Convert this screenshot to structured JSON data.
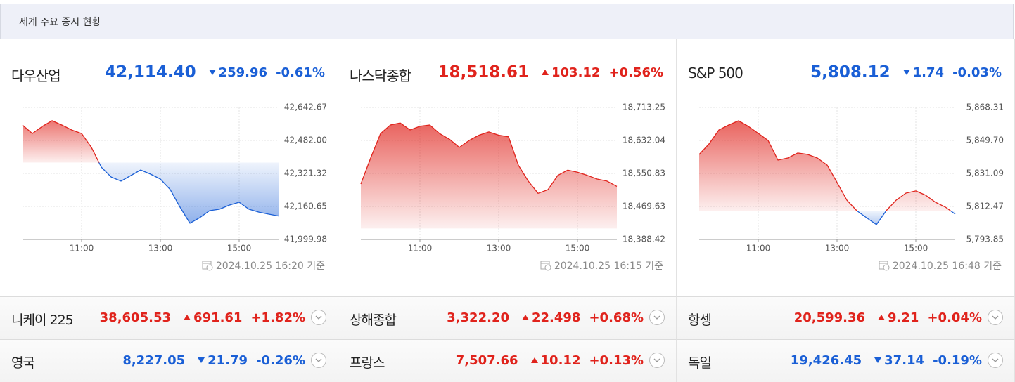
{
  "header": {
    "title": "세계 주요 증시 현황"
  },
  "colors": {
    "up": "#e0231c",
    "down": "#1a5fd6"
  },
  "panels": [
    {
      "name": "다우산업",
      "value": "42,114.40",
      "change": "259.96",
      "direction": "down",
      "pct": "-0.61%",
      "timestamp": "2024.10.25 16:20 기준",
      "chart_data": {
        "type": "line",
        "x": [
          "09:30",
          "09:45",
          "10:00",
          "10:15",
          "10:30",
          "10:45",
          "11:00",
          "11:15",
          "11:30",
          "11:45",
          "12:00",
          "12:15",
          "12:30",
          "12:45",
          "13:00",
          "13:15",
          "13:30",
          "13:45",
          "14:00",
          "14:15",
          "14:30",
          "14:45",
          "15:00",
          "15:15",
          "15:30",
          "15:45",
          "16:00"
        ],
        "values": [
          42557,
          42516,
          42550,
          42578,
          42557,
          42533,
          42516,
          42448,
          42352,
          42304,
          42284,
          42311,
          42338,
          42318,
          42294,
          42243,
          42157,
          42079,
          42106,
          42140,
          42147,
          42167,
          42181,
          42147,
          42133,
          42123,
          42114
        ],
        "xlim": [
          "09:30",
          "16:00"
        ],
        "xticks": [
          "11:00",
          "13:00",
          "15:00"
        ],
        "ylim": [
          41999.98,
          42642.67
        ],
        "yticks": [
          {
            "value": 41999.98,
            "label": "41,999.98"
          },
          {
            "value": 42160.65,
            "label": "42,160.65"
          },
          {
            "value": 42321.32,
            "label": "42,321.32"
          },
          {
            "value": 42482,
            "label": "42,482.00"
          },
          {
            "value": 42642.67,
            "label": "42,642.67"
          }
        ],
        "grid": true
      }
    },
    {
      "name": "나스닥종합",
      "value": "18,518.61",
      "change": "103.12",
      "direction": "up",
      "pct": "+0.56%",
      "timestamp": "2024.10.25 16:15 기준",
      "chart_data": {
        "type": "line",
        "x": [
          "09:30",
          "09:45",
          "10:00",
          "10:15",
          "10:30",
          "10:45",
          "11:00",
          "11:15",
          "11:30",
          "11:45",
          "12:00",
          "12:15",
          "12:30",
          "12:45",
          "13:00",
          "13:15",
          "13:30",
          "13:45",
          "14:00",
          "14:15",
          "14:30",
          "14:45",
          "15:00",
          "15:15",
          "15:30",
          "15:45",
          "16:00"
        ],
        "values": [
          18525,
          18589,
          18649,
          18670,
          18675,
          18658,
          18667,
          18670,
          18649,
          18635,
          18615,
          18632,
          18645,
          18653,
          18645,
          18641,
          18571,
          18532,
          18502,
          18511,
          18546,
          18559,
          18554,
          18546,
          18537,
          18532,
          18519
        ],
        "xlim": [
          "09:30",
          "16:00"
        ],
        "xticks": [
          "11:00",
          "13:00",
          "15:00"
        ],
        "ylim": [
          18388.42,
          18713.25
        ],
        "yticks": [
          {
            "value": 18388.42,
            "label": "18,388.42"
          },
          {
            "value": 18469.63,
            "label": "18,469.63"
          },
          {
            "value": 18550.83,
            "label": "18,550.83"
          },
          {
            "value": 18632.04,
            "label": "18,632.04"
          },
          {
            "value": 18713.25,
            "label": "18,713.25"
          }
        ],
        "grid": true
      }
    },
    {
      "name": "S&P 500",
      "value": "5,808.12",
      "change": "1.74",
      "direction": "down",
      "pct": "-0.03%",
      "timestamp": "2024.10.25 16:48 기준",
      "chart_data": {
        "type": "line",
        "x": [
          "09:30",
          "09:45",
          "10:00",
          "10:15",
          "10:30",
          "10:45",
          "11:00",
          "11:15",
          "11:30",
          "11:45",
          "12:00",
          "12:15",
          "12:30",
          "12:45",
          "13:00",
          "13:15",
          "13:30",
          "13:45",
          "14:00",
          "14:15",
          "14:30",
          "14:45",
          "15:00",
          "15:15",
          "15:30",
          "15:45",
          "16:00"
        ],
        "values": [
          5841.8,
          5847.7,
          5855.6,
          5858.4,
          5860.8,
          5857.6,
          5853.7,
          5849.7,
          5838.6,
          5839.8,
          5842.6,
          5841.8,
          5839.8,
          5835.8,
          5826.0,
          5816.0,
          5810.1,
          5806.1,
          5802.2,
          5810.1,
          5816.0,
          5820.0,
          5821.2,
          5818.8,
          5814.8,
          5812.1,
          5808.1
        ],
        "xlim": [
          "09:30",
          "16:00"
        ],
        "xticks": [
          "11:00",
          "13:00",
          "15:00"
        ],
        "ylim": [
          5793.85,
          5868.31
        ],
        "yticks": [
          {
            "value": 5793.85,
            "label": "5,793.85"
          },
          {
            "value": 5812.47,
            "label": "5,812.47"
          },
          {
            "value": 5831.09,
            "label": "5,831.09"
          },
          {
            "value": 5849.7,
            "label": "5,849.70"
          },
          {
            "value": 5868.31,
            "label": "5,868.31"
          }
        ],
        "grid": true
      }
    }
  ],
  "list": [
    {
      "name": "니케이 225",
      "value": "38,605.53",
      "change": "691.61",
      "direction": "up",
      "pct": "+1.82%"
    },
    {
      "name": "상해종합",
      "value": "3,322.20",
      "change": "22.498",
      "direction": "up",
      "pct": "+0.68%"
    },
    {
      "name": "항셍",
      "value": "20,599.36",
      "change": "9.21",
      "direction": "up",
      "pct": "+0.04%"
    },
    {
      "name": "영국",
      "value": "8,227.05",
      "change": "21.79",
      "direction": "down",
      "pct": "-0.26%"
    },
    {
      "name": "프랑스",
      "value": "7,507.66",
      "change": "10.12",
      "direction": "up",
      "pct": "+0.13%"
    },
    {
      "name": "독일",
      "value": "19,426.45",
      "change": "37.14",
      "direction": "down",
      "pct": "-0.19%"
    }
  ]
}
